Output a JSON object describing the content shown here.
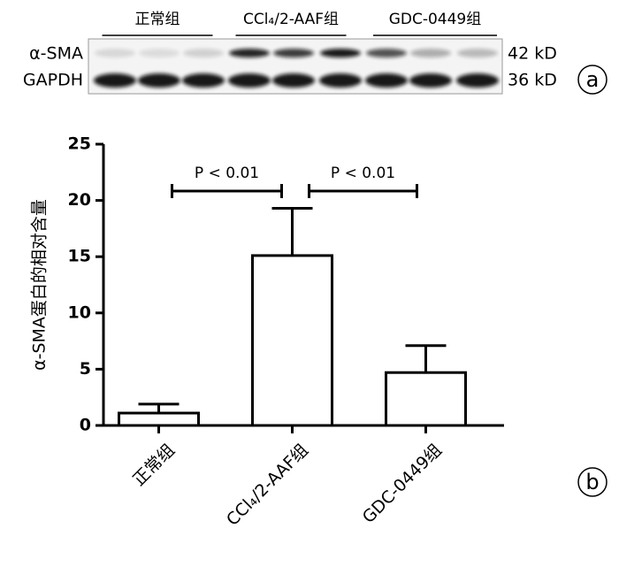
{
  "blot": {
    "groups": [
      "正常组",
      "CCl₄/2-AAF组",
      "GDC-0449组"
    ],
    "rows": [
      {
        "label": "α-SMA",
        "size": "42 kD"
      },
      {
        "label": "GAPDH",
        "size": "36 kD"
      }
    ]
  },
  "panel_labels": [
    "a",
    "b"
  ],
  "chart_data": {
    "type": "bar",
    "y_label": "α-SMA蛋白的相对含量",
    "categories": [
      "正常组",
      "CCl₄/2-AAF组",
      "GDC-0449组"
    ],
    "values": [
      1.1,
      15.1,
      4.7
    ],
    "errors": [
      0.8,
      4.2,
      2.4
    ],
    "color": "#ffffff",
    "ylim": [
      0,
      25
    ],
    "yticks": [
      0,
      5,
      10,
      15,
      20,
      25
    ],
    "grid": false,
    "annotations": [
      {
        "text": "P < 0.01",
        "from": 0,
        "to": 1
      },
      {
        "text": "P < 0.01",
        "from": 1,
        "to": 2
      }
    ]
  }
}
